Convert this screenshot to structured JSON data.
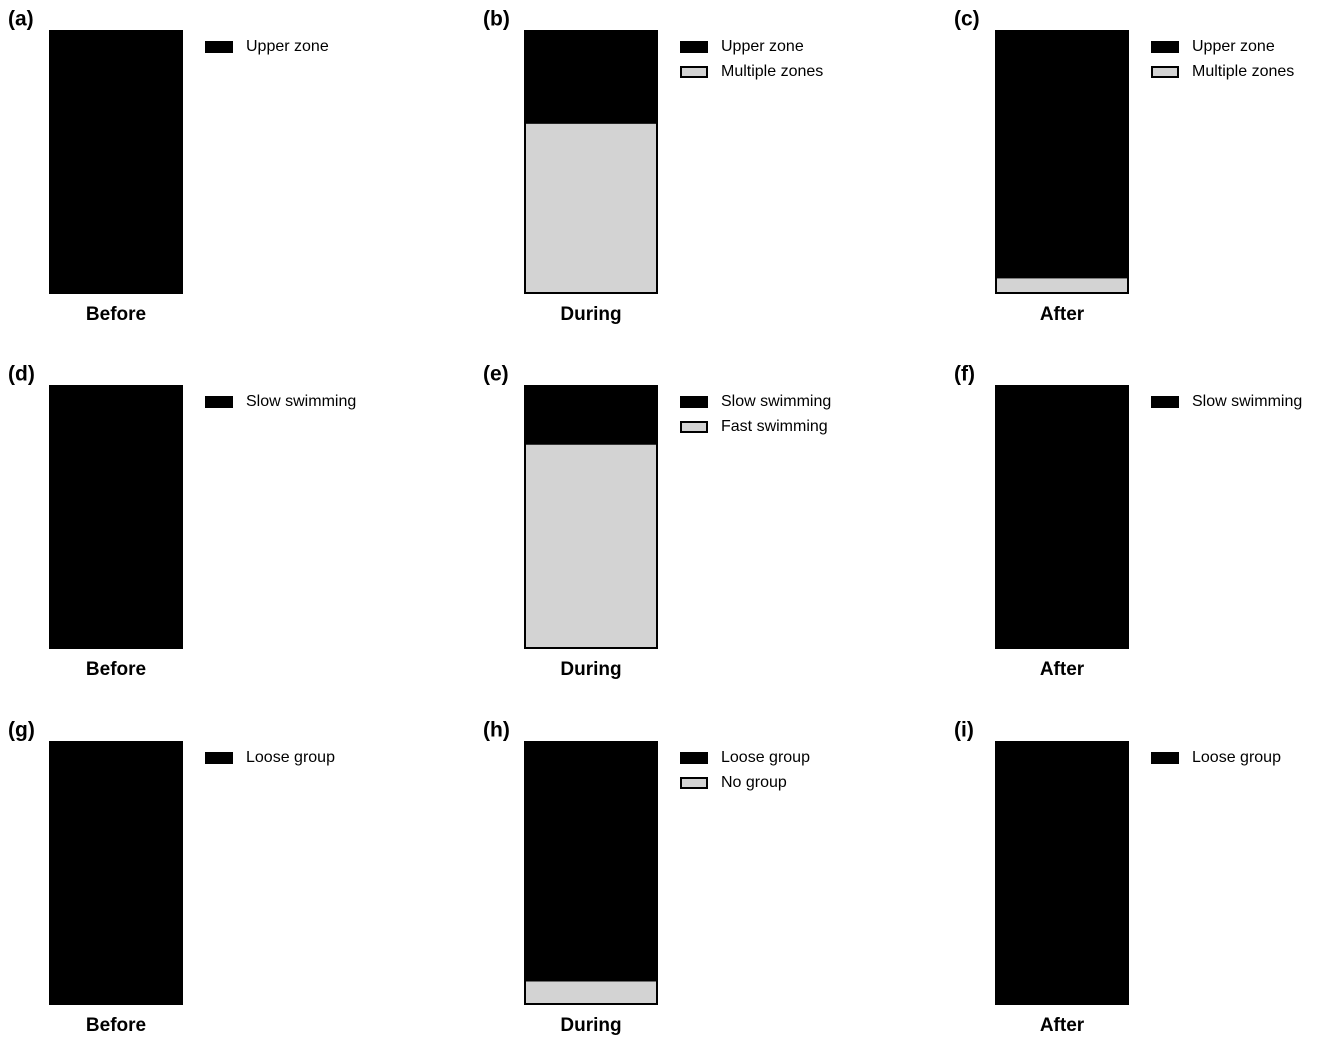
{
  "chart_data": [
    {
      "type": "bar",
      "stacked": true,
      "panel_label": "(a)",
      "categories": [
        "Before"
      ],
      "ylim": [
        0,
        100
      ],
      "series": [
        {
          "name": "Upper zone",
          "color": "#000000",
          "values": [
            100
          ]
        }
      ]
    },
    {
      "type": "bar",
      "stacked": true,
      "panel_label": "(b)",
      "categories": [
        "During"
      ],
      "ylim": [
        0,
        100
      ],
      "series": [
        {
          "name": "Upper zone",
          "color": "#000000",
          "values": [
            35
          ]
        },
        {
          "name": "Multiple zones",
          "color": "#d3d3d3",
          "values": [
            65
          ]
        }
      ]
    },
    {
      "type": "bar",
      "stacked": true,
      "panel_label": "(c)",
      "categories": [
        "After"
      ],
      "ylim": [
        0,
        100
      ],
      "series": [
        {
          "name": "Upper zone",
          "color": "#000000",
          "values": [
            94
          ]
        },
        {
          "name": "Multiple zones",
          "color": "#d3d3d3",
          "values": [
            6
          ]
        }
      ]
    },
    {
      "type": "bar",
      "stacked": true,
      "panel_label": "(d)",
      "categories": [
        "Before"
      ],
      "ylim": [
        0,
        100
      ],
      "series": [
        {
          "name": "Slow swimming",
          "color": "#000000",
          "values": [
            100
          ]
        }
      ]
    },
    {
      "type": "bar",
      "stacked": true,
      "panel_label": "(e)",
      "categories": [
        "During"
      ],
      "ylim": [
        0,
        100
      ],
      "series": [
        {
          "name": "Slow swimming",
          "color": "#000000",
          "values": [
            22
          ]
        },
        {
          "name": "Fast swimming",
          "color": "#d3d3d3",
          "values": [
            78
          ]
        }
      ]
    },
    {
      "type": "bar",
      "stacked": true,
      "panel_label": "(f)",
      "categories": [
        "After"
      ],
      "ylim": [
        0,
        100
      ],
      "series": [
        {
          "name": "Slow swimming",
          "color": "#000000",
          "values": [
            100
          ]
        }
      ]
    },
    {
      "type": "bar",
      "stacked": true,
      "panel_label": "(g)",
      "categories": [
        "Before"
      ],
      "ylim": [
        0,
        100
      ],
      "series": [
        {
          "name": "Loose group",
          "color": "#000000",
          "values": [
            100
          ]
        }
      ]
    },
    {
      "type": "bar",
      "stacked": true,
      "panel_label": "(h)",
      "categories": [
        "During"
      ],
      "ylim": [
        0,
        100
      ],
      "series": [
        {
          "name": "Loose group",
          "color": "#000000",
          "values": [
            91
          ]
        },
        {
          "name": "No group",
          "color": "#d3d3d3",
          "values": [
            9
          ]
        }
      ]
    },
    {
      "type": "bar",
      "stacked": true,
      "panel_label": "(i)",
      "categories": [
        "After"
      ],
      "ylim": [
        0,
        100
      ],
      "series": [
        {
          "name": "Loose group",
          "color": "#000000",
          "values": [
            100
          ]
        }
      ]
    }
  ]
}
